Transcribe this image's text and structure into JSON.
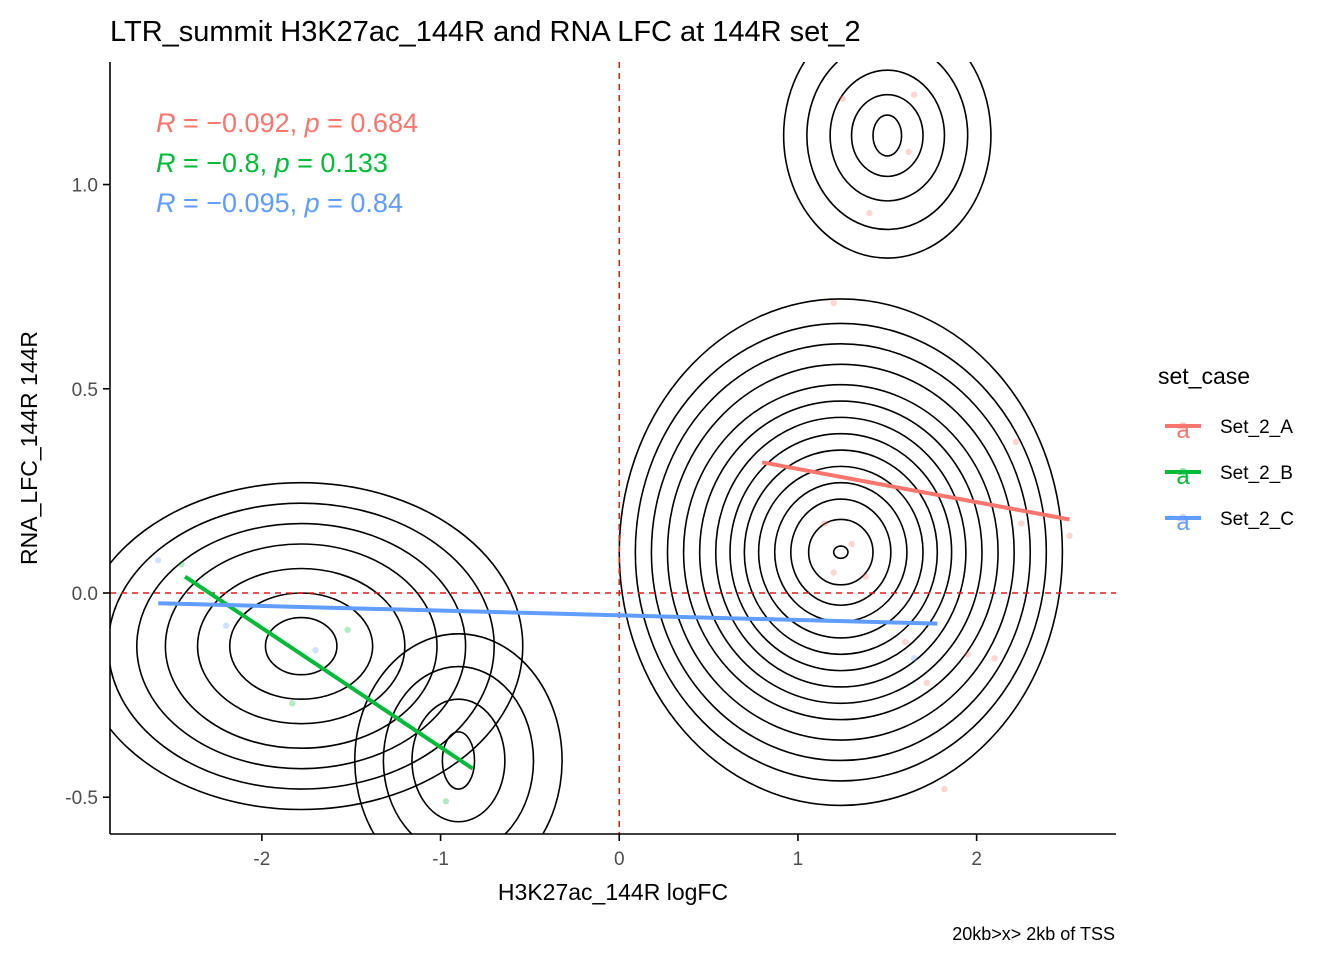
{
  "chart_data": {
    "type": "scatter",
    "title": "LTR_summit H3K27ac_144R and RNA LFC at 144R set_2",
    "xlabel": "H3K27ac_144R logFC",
    "ylabel": "RNA_LFC_144R 144R",
    "caption": "20kb>x> 2kb of TSS",
    "xlim": [
      -2.85,
      2.78
    ],
    "ylim": [
      -0.59,
      1.3
    ],
    "x_ticks": [
      -2,
      -1,
      0,
      1,
      2
    ],
    "x_tick_labels": [
      "-2",
      "-1",
      "0",
      "1",
      "2"
    ],
    "y_ticks": [
      -0.5,
      0.0,
      0.5,
      1.0
    ],
    "y_tick_labels": [
      "-0.5",
      "0.0",
      "0.5",
      "1.0"
    ],
    "ref_lines": {
      "x": 0,
      "y": 0,
      "color": "#E41A1C",
      "style": "dashed"
    },
    "legend": {
      "title": "set_case",
      "position": "right",
      "glyph": "a"
    },
    "series": [
      {
        "name": "Set_2_A",
        "color": "#F8766D",
        "points": [
          [
            1.25,
            1.21
          ],
          [
            1.65,
            1.22
          ],
          [
            1.4,
            0.93
          ],
          [
            1.62,
            1.08
          ],
          [
            1.2,
            0.71
          ],
          [
            1.15,
            0.17
          ],
          [
            1.3,
            0.12
          ],
          [
            1.38,
            0.04
          ],
          [
            1.2,
            0.05
          ],
          [
            2.22,
            0.37
          ],
          [
            2.25,
            0.17
          ],
          [
            2.52,
            0.14
          ],
          [
            2.1,
            -0.16
          ],
          [
            1.95,
            -0.15
          ],
          [
            1.82,
            -0.48
          ],
          [
            1.72,
            -0.22
          ],
          [
            1.6,
            -0.12
          ]
        ],
        "fit": [
          [
            0.8,
            0.32
          ],
          [
            2.52,
            0.18
          ]
        ],
        "stats": {
          "R": "−0.092",
          "p": "0.684"
        }
      },
      {
        "name": "Set_2_B",
        "color": "#00BA38",
        "points": [
          [
            -2.45,
            0.07
          ],
          [
            -1.52,
            -0.09
          ],
          [
            -1.83,
            -0.27
          ],
          [
            -0.97,
            -0.51
          ]
        ],
        "fit": [
          [
            -2.43,
            0.04
          ],
          [
            -0.82,
            -0.43
          ]
        ],
        "stats": {
          "R": "−0.8",
          "p": "0.133"
        }
      },
      {
        "name": "Set_2_C",
        "color": "#619CFF",
        "points": [
          [
            -2.58,
            0.08
          ],
          [
            -2.2,
            -0.08
          ],
          [
            -1.7,
            -0.14
          ],
          [
            1.65,
            -0.16
          ]
        ],
        "fit": [
          [
            -2.58,
            -0.025
          ],
          [
            1.78,
            -0.075
          ]
        ],
        "stats": {
          "R": "−0.095",
          "p": "0.84"
        }
      }
    ],
    "density_contours": {
      "color": "#000000",
      "clusters": [
        {
          "cx": -1.78,
          "cy": -0.13,
          "rx": [
            0.2,
            0.4,
            0.58,
            0.76,
            0.92,
            1.08,
            1.24
          ],
          "ry": [
            0.07,
            0.13,
            0.19,
            0.25,
            0.3,
            0.35,
            0.4
          ]
        },
        {
          "cx": -0.9,
          "cy": -0.41,
          "rx": [
            0.09,
            0.26,
            0.42,
            0.58
          ],
          "ry": [
            0.07,
            0.15,
            0.23,
            0.31
          ]
        },
        {
          "cx": 1.24,
          "cy": 0.1,
          "rx": [
            0.04,
            0.18,
            0.28,
            0.37,
            0.46,
            0.54,
            0.62,
            0.7,
            0.79,
            0.88,
            0.97,
            1.06,
            1.15,
            1.24
          ],
          "ry": [
            0.015,
            0.08,
            0.13,
            0.17,
            0.21,
            0.25,
            0.29,
            0.33,
            0.37,
            0.41,
            0.46,
            0.51,
            0.56,
            0.62
          ]
        },
        {
          "cx": 1.5,
          "cy": 1.12,
          "rx": [
            0.08,
            0.2,
            0.32,
            0.45,
            0.58
          ],
          "ry": [
            0.05,
            0.1,
            0.16,
            0.23,
            0.3
          ]
        }
      ]
    }
  }
}
